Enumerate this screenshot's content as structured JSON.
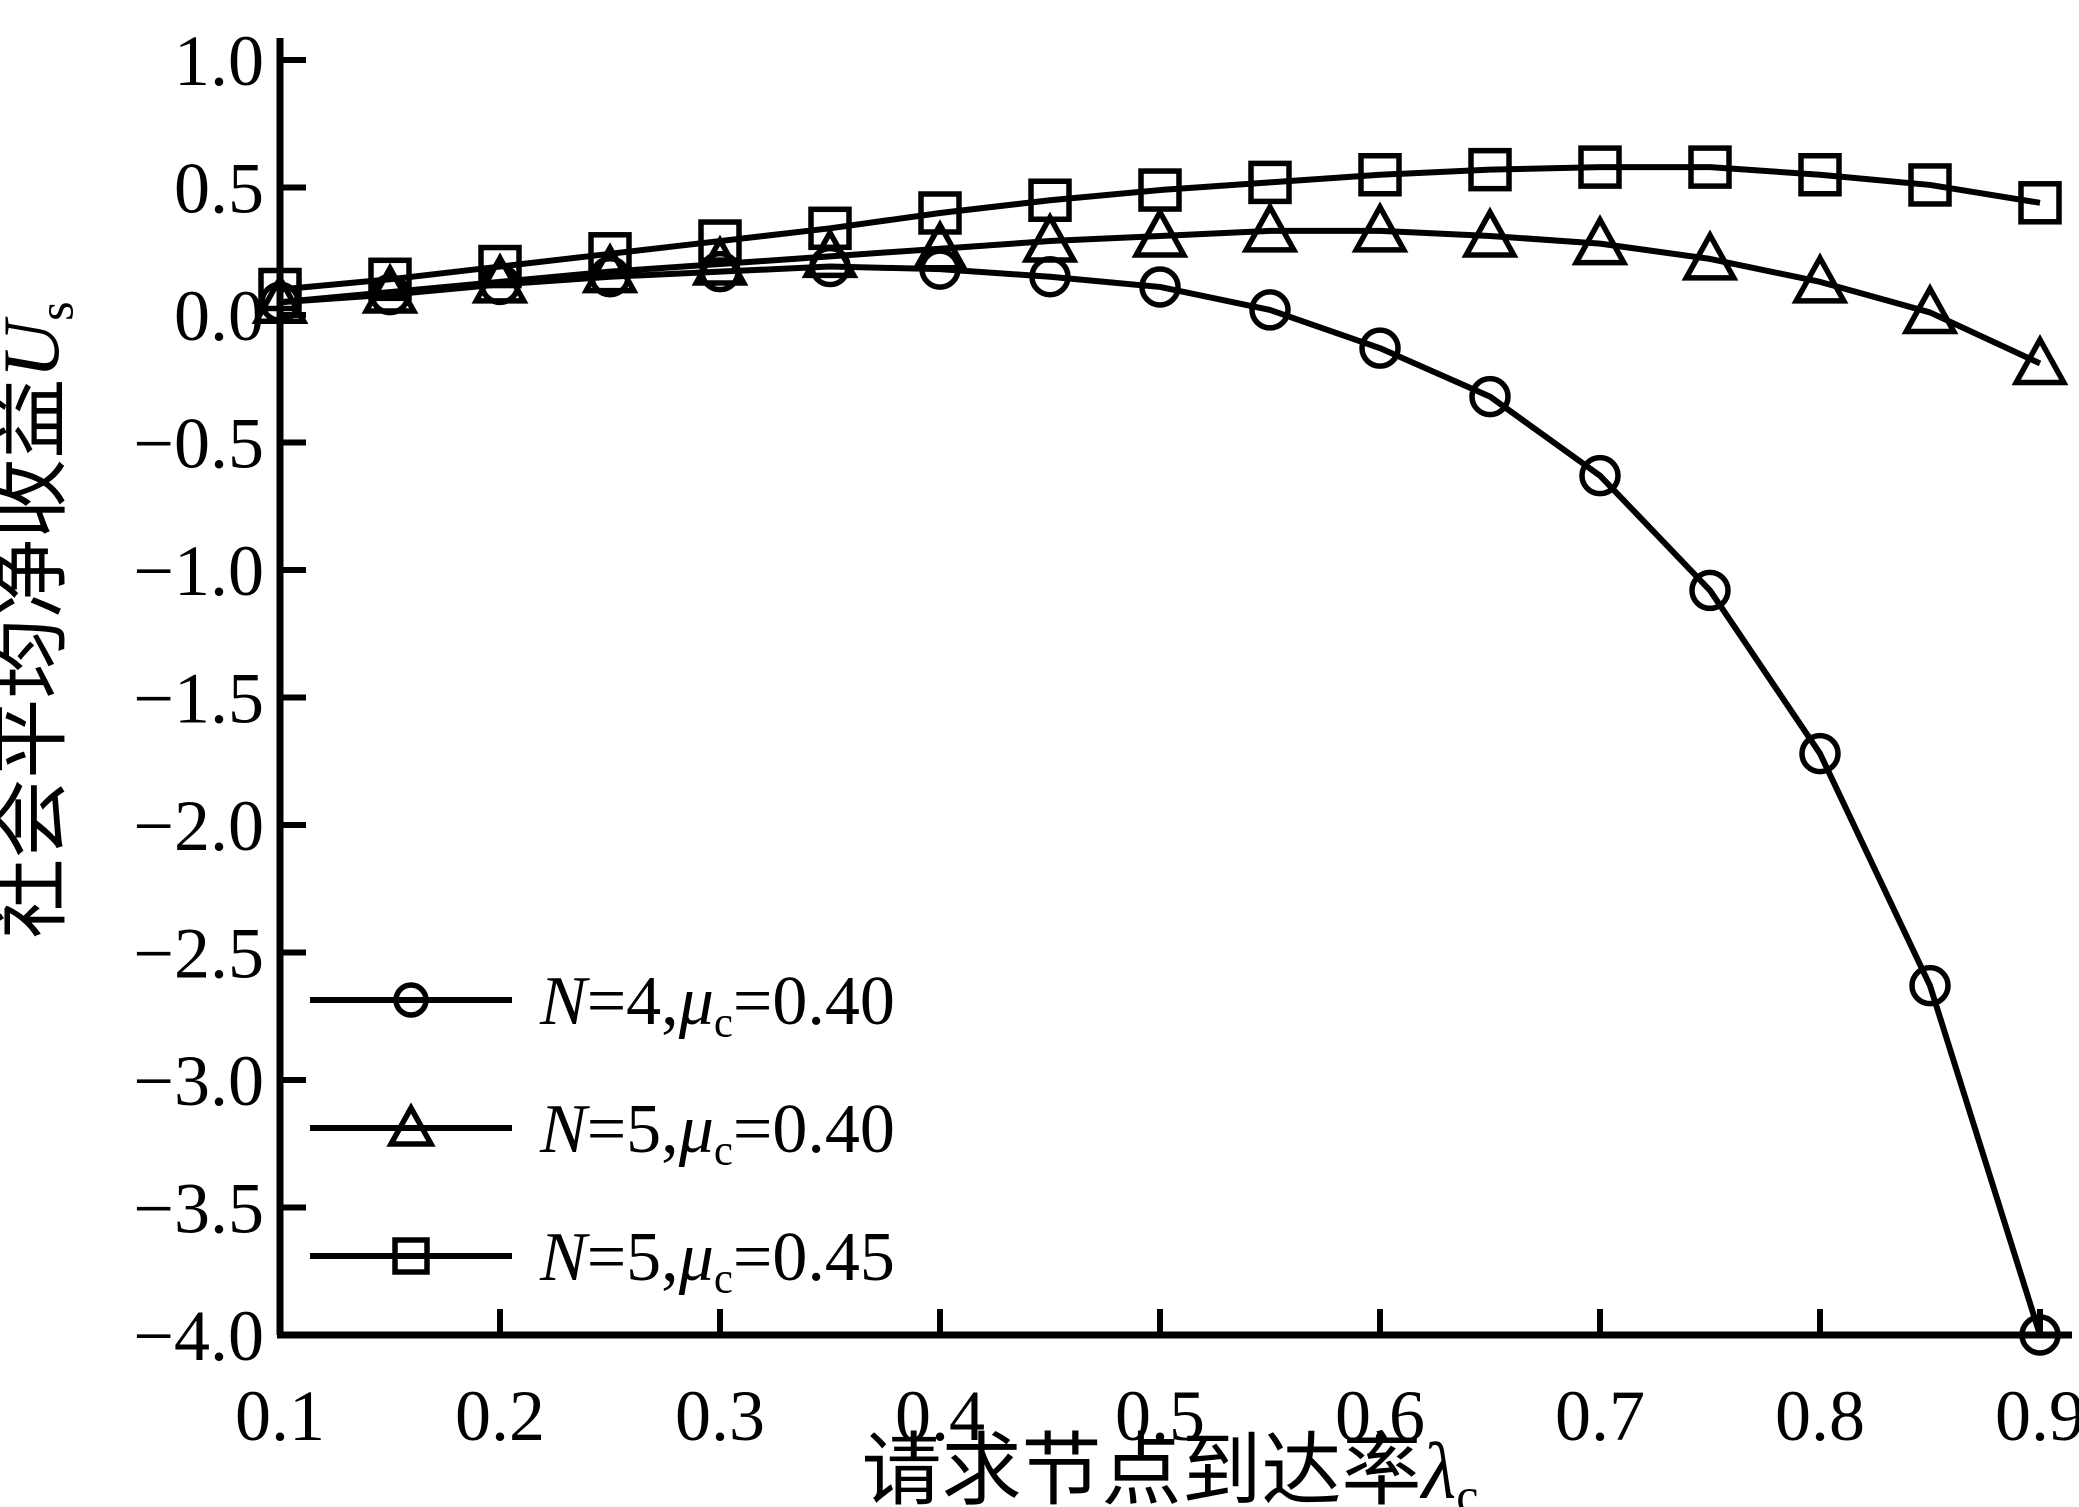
{
  "figure": {
    "background": "#ffffff",
    "ink": "#000000"
  },
  "chart_data": {
    "type": "line",
    "title": "",
    "xlabel_text": "请求节点到达率λc",
    "xlabel_parts": [
      {
        "t": "请求节点到达率"
      },
      {
        "t": "λ",
        "i": true
      },
      {
        "t": "c",
        "sub": true
      }
    ],
    "ylabel_text": "社会平均净收益Us",
    "ylabel_parts": [
      {
        "t": "社会平均净收益"
      },
      {
        "t": "U",
        "i": true
      },
      {
        "t": "s",
        "sub": true
      }
    ],
    "xlim": [
      0.1,
      0.9
    ],
    "ylim": [
      -4.0,
      1.0
    ],
    "grid": false,
    "legend_position": "lower-left",
    "xticks": [
      0.1,
      0.2,
      0.3,
      0.4,
      0.5,
      0.6,
      0.7,
      0.8,
      0.9
    ],
    "xtick_labels": [
      "0.1",
      "0.2",
      "0.3",
      "0.4",
      "0.5",
      "0.6",
      "0.7",
      "0.8",
      "0.9"
    ],
    "yticks": [
      1.0,
      0.5,
      0.0,
      -0.5,
      -1.0,
      -1.5,
      -2.0,
      -2.5,
      -3.0,
      -3.5,
      -4.0
    ],
    "ytick_labels": [
      "1.0",
      "0.5",
      "0.0",
      "−0.5",
      "−1.0",
      "−1.5",
      "−2.0",
      "−2.5",
      "−3.0",
      "−3.5",
      "−4.0"
    ],
    "x": [
      0.1,
      0.15,
      0.2,
      0.25,
      0.3,
      0.35,
      0.4,
      0.45,
      0.5,
      0.55,
      0.6,
      0.65,
      0.7,
      0.75,
      0.8,
      0.85,
      0.9
    ],
    "series": [
      {
        "name": "N=4,μc=0.40",
        "marker": "circle",
        "label_parts": [
          {
            "t": "N",
            "i": true
          },
          {
            "t": "=4,"
          },
          {
            "t": "μ",
            "i": true
          },
          {
            "t": "c",
            "sub": true
          },
          {
            "t": "=0.40"
          }
        ],
        "values": [
          0.05,
          0.08,
          0.12,
          0.15,
          0.17,
          0.19,
          0.18,
          0.15,
          0.11,
          0.02,
          -0.13,
          -0.32,
          -0.63,
          -1.08,
          -1.72,
          -2.63,
          -4.0
        ]
      },
      {
        "name": "N=5,μc=0.40",
        "marker": "triangle",
        "label_parts": [
          {
            "t": "N",
            "i": true
          },
          {
            "t": "=5,"
          },
          {
            "t": "μ",
            "i": true
          },
          {
            "t": "c",
            "sub": true
          },
          {
            "t": "=0.40"
          }
        ],
        "values": [
          0.05,
          0.09,
          0.13,
          0.17,
          0.2,
          0.23,
          0.26,
          0.29,
          0.31,
          0.33,
          0.33,
          0.31,
          0.28,
          0.22,
          0.13,
          0.01,
          -0.19
        ]
      },
      {
        "name": "N=5,μc=0.45",
        "marker": "square",
        "label_parts": [
          {
            "t": "N",
            "i": true
          },
          {
            "t": "=5,"
          },
          {
            "t": "μ",
            "i": true
          },
          {
            "t": "c",
            "sub": true
          },
          {
            "t": "=0.45"
          }
        ],
        "values": [
          0.1,
          0.14,
          0.19,
          0.24,
          0.29,
          0.34,
          0.4,
          0.45,
          0.49,
          0.52,
          0.55,
          0.57,
          0.58,
          0.58,
          0.55,
          0.51,
          0.44
        ]
      }
    ]
  }
}
